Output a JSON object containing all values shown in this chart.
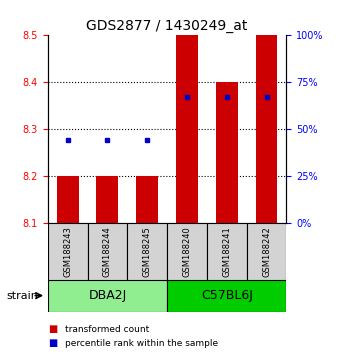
{
  "title": "GDS2877 / 1430249_at",
  "samples": [
    "GSM188243",
    "GSM188244",
    "GSM188245",
    "GSM188240",
    "GSM188241",
    "GSM188242"
  ],
  "groups": [
    {
      "name": "DBA2J",
      "indices": [
        0,
        1,
        2
      ],
      "color": "#90EE90"
    },
    {
      "name": "C57BL6J",
      "indices": [
        3,
        4,
        5
      ],
      "color": "#00CC00"
    }
  ],
  "bar_bottom": 8.1,
  "transformed_counts": [
    8.2,
    8.2,
    8.2,
    8.5,
    8.4,
    8.5
  ],
  "percentile_ranks": [
    0.44,
    0.44,
    0.44,
    0.67,
    0.67,
    0.67
  ],
  "ylim": [
    8.1,
    8.5
  ],
  "y_ticks": [
    8.1,
    8.2,
    8.3,
    8.4,
    8.5
  ],
  "right_yticks": [
    0,
    25,
    50,
    75,
    100
  ],
  "bar_color": "#CC0000",
  "dot_color": "#0000CC",
  "bar_width": 0.55,
  "strain_label": "strain",
  "title_fontsize": 10,
  "background_color": "#ffffff"
}
